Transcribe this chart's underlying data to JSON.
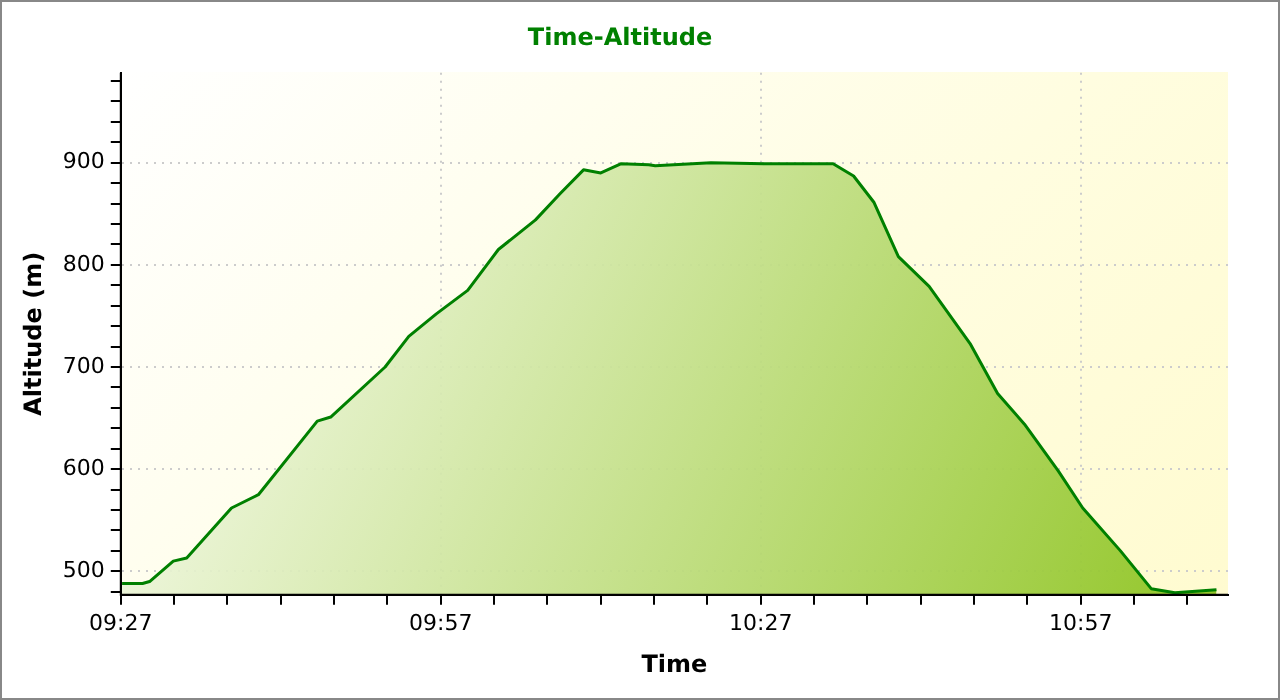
{
  "chart_data": {
    "type": "area",
    "title": "Time-Altitude",
    "xlabel": "Time",
    "ylabel": "Altitude (m)",
    "x": [
      9.452,
      9.484,
      9.495,
      9.532,
      9.553,
      9.623,
      9.665,
      9.757,
      9.778,
      9.863,
      9.9,
      9.943,
      9.992,
      10.04,
      10.098,
      10.137,
      10.173,
      10.2,
      10.232,
      10.275,
      10.285,
      10.372,
      10.457,
      10.563,
      10.595,
      10.627,
      10.665,
      10.713,
      10.777,
      10.82,
      10.862,
      10.915,
      10.953,
      11.012,
      11.06,
      11.097,
      11.162
    ],
    "series": [
      {
        "color": "#008000",
        "values": [
          488,
          488,
          490,
          510,
          513,
          562,
          575,
          647,
          651,
          700,
          730,
          752,
          775,
          815,
          844,
          870,
          893,
          890,
          899,
          898,
          897,
          900,
          899,
          899,
          887,
          861,
          808,
          779,
          723,
          674,
          644,
          598,
          562,
          520,
          483,
          479,
          482
        ]
      }
    ],
    "xlim": [
      9.45,
      11.18
    ],
    "xticks": [
      {
        "value": 9.45,
        "label": "09:27"
      },
      {
        "value": 9.5333,
        "label": null
      },
      {
        "value": 9.6167,
        "label": null
      },
      {
        "value": 9.7,
        "label": null
      },
      {
        "value": 9.7833,
        "label": null
      },
      {
        "value": 9.8667,
        "label": null
      },
      {
        "value": 9.95,
        "label": "09:57"
      },
      {
        "value": 10.0333,
        "label": null
      },
      {
        "value": 10.1167,
        "label": null
      },
      {
        "value": 10.2,
        "label": null
      },
      {
        "value": 10.2833,
        "label": null
      },
      {
        "value": 10.3667,
        "label": null
      },
      {
        "value": 10.45,
        "label": "10:27"
      },
      {
        "value": 10.5333,
        "label": null
      },
      {
        "value": 10.6167,
        "label": null
      },
      {
        "value": 10.7,
        "label": null
      },
      {
        "value": 10.7833,
        "label": null
      },
      {
        "value": 10.8667,
        "label": null
      },
      {
        "value": 10.95,
        "label": "10:57"
      },
      {
        "value": 11.0333,
        "label": null
      },
      {
        "value": 11.1167,
        "label": null
      }
    ],
    "ylim": [
      477,
      988
    ],
    "yticks": [
      {
        "value": 480,
        "label": null
      },
      500,
      {
        "value": 520,
        "label": null
      },
      {
        "value": 540,
        "label": null
      },
      {
        "value": 560,
        "label": null
      },
      {
        "value": 580,
        "label": null
      },
      600,
      {
        "value": 620,
        "label": null
      },
      {
        "value": 640,
        "label": null
      },
      {
        "value": 660,
        "label": null
      },
      {
        "value": 680,
        "label": null
      },
      700,
      {
        "value": 720,
        "label": null
      },
      {
        "value": 740,
        "label": null
      },
      {
        "value": 760,
        "label": null
      },
      {
        "value": 780,
        "label": null
      },
      800,
      {
        "value": 820,
        "label": null
      },
      {
        "value": 840,
        "label": null
      },
      {
        "value": 860,
        "label": null
      },
      {
        "value": 880,
        "label": null
      },
      900,
      {
        "value": 920,
        "label": null
      },
      {
        "value": 940,
        "label": null
      },
      {
        "value": 960,
        "label": null
      },
      {
        "value": 980,
        "label": null
      }
    ],
    "grid": true,
    "legend": false,
    "marker": "none",
    "line_style": "solid"
  }
}
